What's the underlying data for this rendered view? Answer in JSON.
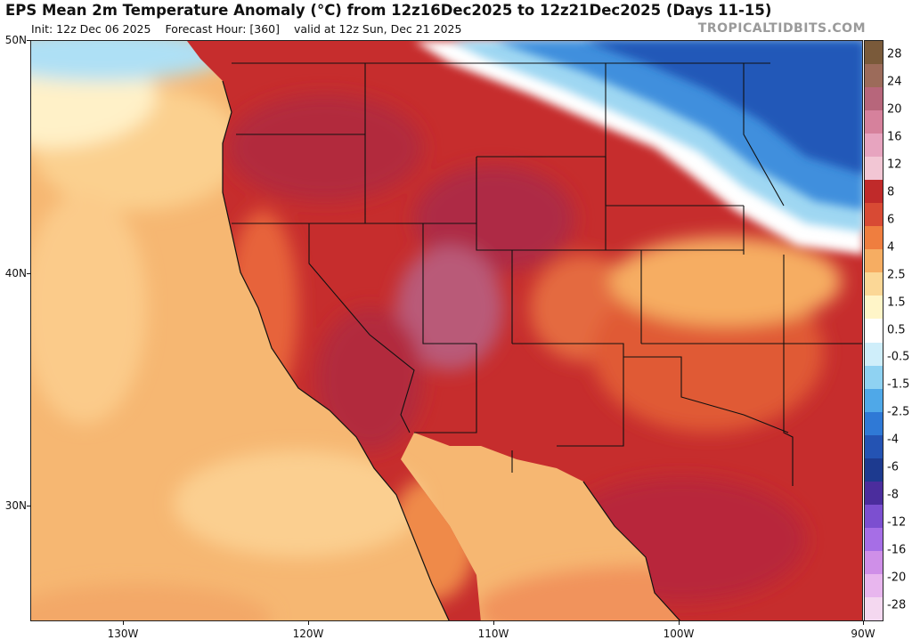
{
  "header": {
    "title": "EPS Mean 2m Temperature Anomaly (°C) from 12z16Dec2025 to 12z21Dec2025 (Days 11-15)",
    "init": "Init: 12z Dec 06 2025",
    "forecast_hour": "Forecast Hour: [360]",
    "valid": "valid at 12z Sun, Dec 21 2025",
    "brand": "TROPICALTIDBITS.COM"
  },
  "axes": {
    "lat_labels": [
      "50N",
      "40N",
      "30N"
    ],
    "lon_labels": [
      "130W",
      "120W",
      "110W",
      "100W",
      "90W"
    ]
  },
  "colorbar": {
    "labels": [
      "28",
      "24",
      "20",
      "16",
      "12",
      "8",
      "6",
      "4",
      "2.5",
      "1.5",
      "0.5",
      "-0.5",
      "-1.5",
      "-2.5",
      "-4",
      "-6",
      "-8",
      "-12",
      "-16",
      "-20",
      "-28"
    ],
    "colors": [
      "#7a5a3a",
      "#9c6b5a",
      "#b7667b",
      "#d6819c",
      "#e7a4bf",
      "#f2c6d4",
      "#c02a2a",
      "#d84a34",
      "#ef7e3f",
      "#f6ad62",
      "#fbd796",
      "#fff5c8",
      "#ffffff",
      "#cfeefa",
      "#8fd2f2",
      "#4fa8e8",
      "#2f79d6",
      "#2453b3",
      "#1d3a8f",
      "#4b2d9d",
      "#7c4fd0",
      "#a66ee6",
      "#cf8fe8",
      "#e8b6ee",
      "#f4d8f0"
    ]
  },
  "map_colors": {
    "ocean_warm": "#f6b772",
    "ocean_light": "#fbd08f",
    "land_hot": "#c62d2d",
    "land_hotter": "#b22a3c",
    "land_peak": "#b95a78",
    "warm_orange": "#e7643a",
    "cold_light": "#9fd7f2",
    "cold_mid": "#3f8fdd",
    "cold_deep": "#2458b8",
    "neutral": "#ffffff",
    "boundary": "#111111"
  }
}
